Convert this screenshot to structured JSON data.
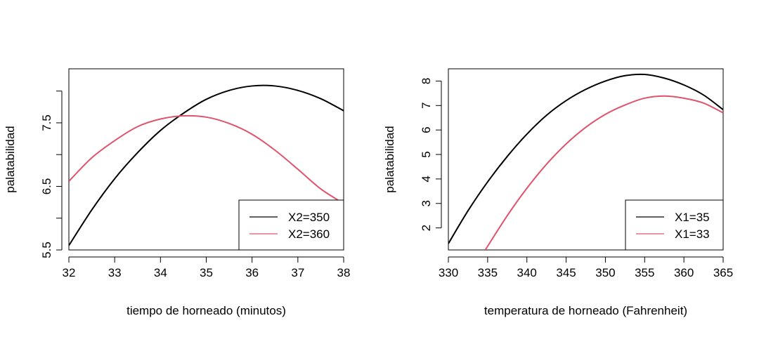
{
  "chart_data": [
    {
      "type": "line",
      "xlabel": "tiempo de horneado (minutos)",
      "ylabel": "palatabilidad",
      "xlim": [
        32,
        38
      ],
      "ylim": [
        5.5,
        8.35
      ],
      "xticks": [
        "32",
        "33",
        "34",
        "35",
        "36",
        "37",
        "38"
      ],
      "yticks": [
        5.5,
        6.0,
        6.5,
        7.0,
        7.5,
        8.0
      ],
      "ytick_labels": [
        "5.5",
        "",
        "6.5",
        "",
        "7.5",
        ""
      ],
      "legend_position": "bottom-right",
      "series": [
        {
          "name": "X2=350",
          "color": "#000000",
          "x": [
            32.0,
            32.5,
            33.0,
            33.5,
            34.0,
            34.5,
            35.0,
            35.5,
            36.0,
            36.5,
            37.0,
            37.5,
            38.0
          ],
          "values": [
            5.57,
            6.13,
            6.62,
            7.03,
            7.38,
            7.65,
            7.87,
            8.01,
            8.08,
            8.08,
            8.01,
            7.88,
            7.69
          ]
        },
        {
          "name": "X2=360",
          "color": "#DF536B",
          "x": [
            32.0,
            32.5,
            33.0,
            33.5,
            34.0,
            34.5,
            35.0,
            35.5,
            36.0,
            36.5,
            37.0,
            37.5,
            38.0
          ],
          "values": [
            6.58,
            6.95,
            7.22,
            7.44,
            7.56,
            7.61,
            7.59,
            7.49,
            7.32,
            7.07,
            6.77,
            6.46,
            6.23
          ]
        }
      ]
    },
    {
      "type": "line",
      "xlabel": "temperatura de horneado (Fahrenheit)",
      "ylabel": "palatabilidad",
      "xlim": [
        330,
        365
      ],
      "ylim": [
        1.1,
        8.5
      ],
      "xticks": [
        "330",
        "335",
        "340",
        "345",
        "350",
        "355",
        "360",
        "365"
      ],
      "yticks": [
        2,
        3,
        4,
        5,
        6,
        7,
        8
      ],
      "ytick_labels": [
        "2",
        "3",
        "4",
        "5",
        "6",
        "7",
        "8"
      ],
      "legend_position": "bottom-right",
      "series": [
        {
          "name": "X1=35",
          "color": "#000000",
          "x": [
            330,
            332.5,
            335,
            337.5,
            340,
            342.5,
            345,
            347.5,
            350,
            352.5,
            355,
            357.5,
            360,
            362.5,
            365
          ],
          "values": [
            1.36,
            2.7,
            3.88,
            4.92,
            5.83,
            6.6,
            7.2,
            7.66,
            8.0,
            8.22,
            8.27,
            8.12,
            7.84,
            7.43,
            6.83
          ]
        },
        {
          "name": "X1=33",
          "color": "#DF536B",
          "x": [
            334.7,
            337.5,
            340,
            342.5,
            345,
            347.5,
            350,
            352.5,
            355,
            357.5,
            360,
            362.5,
            365
          ],
          "values": [
            1.1,
            2.5,
            3.62,
            4.6,
            5.43,
            6.11,
            6.64,
            7.02,
            7.3,
            7.39,
            7.3,
            7.1,
            6.7
          ]
        }
      ]
    }
  ]
}
